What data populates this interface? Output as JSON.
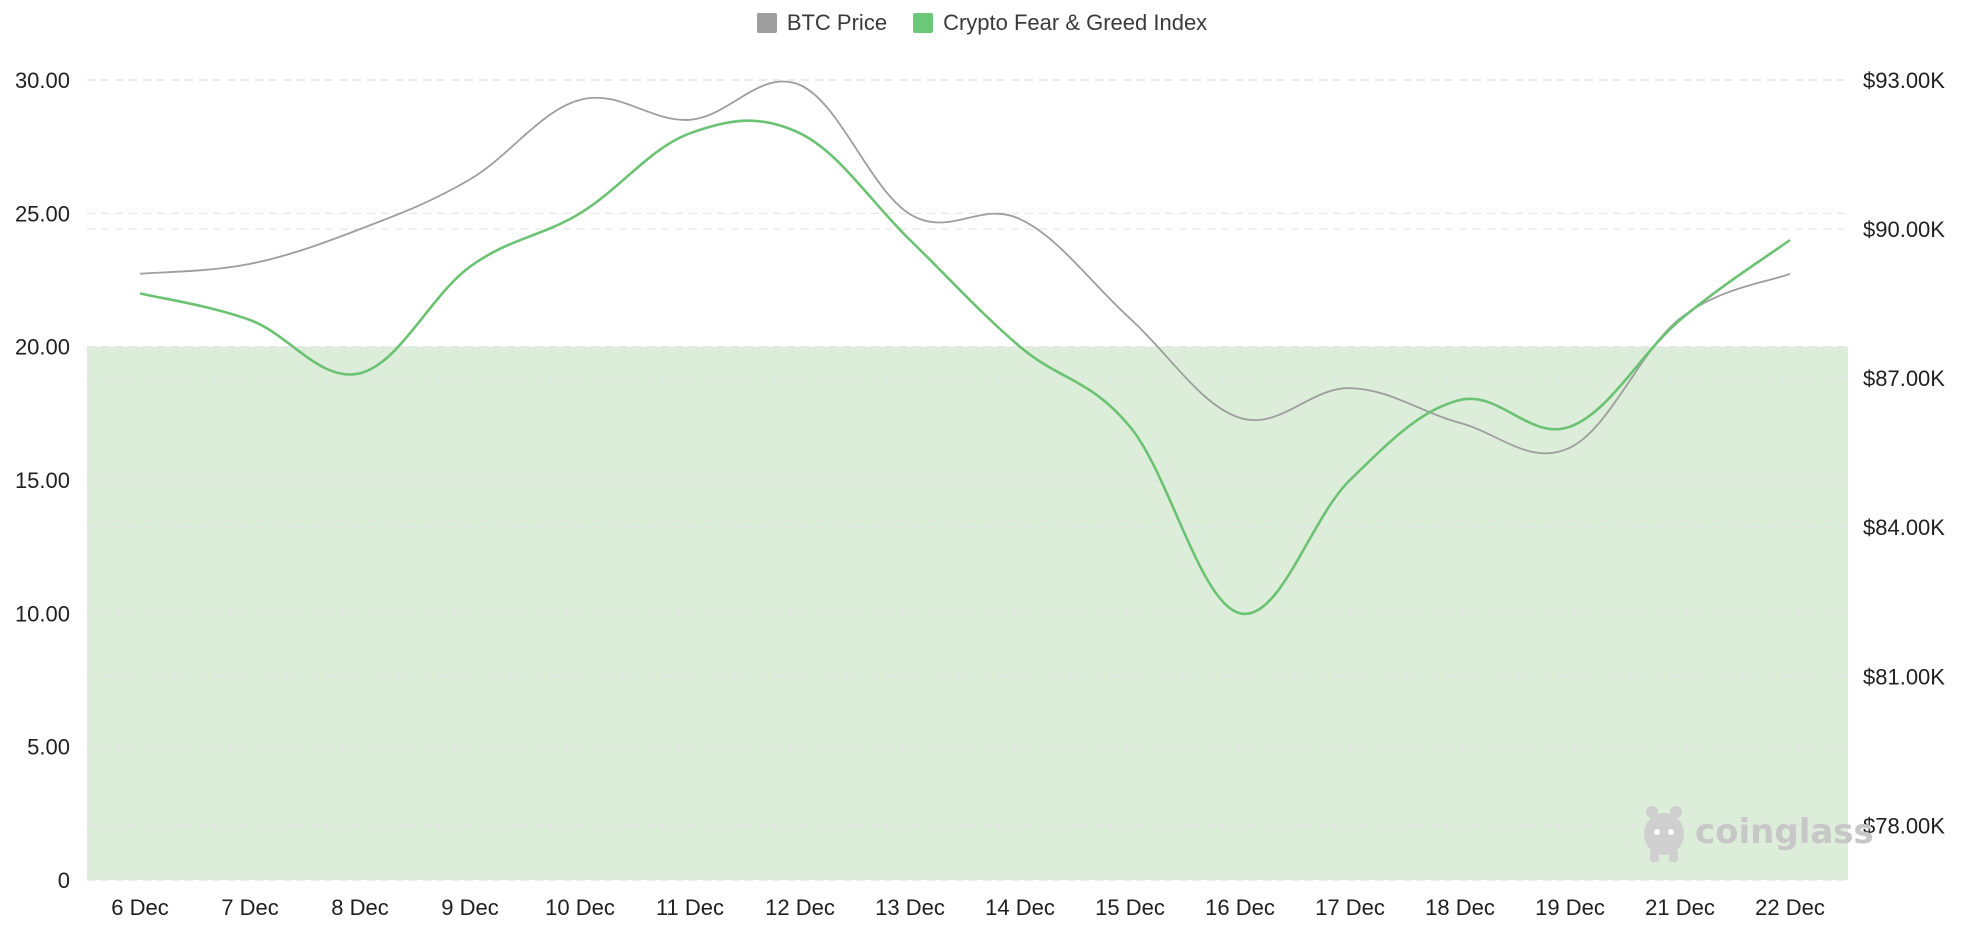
{
  "legend": {
    "btc_label": "BTC Price",
    "fg_label": "Crypto Fear & Greed Index"
  },
  "watermark": {
    "brand": "coinglass"
  },
  "colors": {
    "btc_line": "#9e9e9e",
    "fg_line": "#6cc273",
    "zone_fill": "#dcedda",
    "grid": "#e4e4e4",
    "legend_btc_swatch": "#9e9e9e",
    "legend_fg_swatch": "#6cc878"
  },
  "chart_data": {
    "type": "line",
    "categories": [
      "6 Dec",
      "7 Dec",
      "8 Dec",
      "9 Dec",
      "10 Dec",
      "11 Dec",
      "12 Dec",
      "13 Dec",
      "14 Dec",
      "15 Dec",
      "16 Dec",
      "17 Dec",
      "18 Dec",
      "19 Dec",
      "21 Dec",
      "22 Dec"
    ],
    "series": [
      {
        "name": "BTC Price",
        "axis": "right",
        "values": [
          89100,
          89300,
          90000,
          91000,
          92600,
          92200,
          92900,
          90300,
          90200,
          88200,
          86200,
          86800,
          86100,
          85600,
          88200,
          89100
        ]
      },
      {
        "name": "Crypto Fear & Greed Index",
        "axis": "left",
        "values": [
          22,
          21,
          19,
          23,
          25,
          28,
          28,
          24,
          20,
          17,
          10,
          15,
          18,
          17,
          21,
          24
        ]
      }
    ],
    "left_axis": {
      "ticks": [
        0,
        5,
        10,
        15,
        20,
        25,
        30
      ],
      "tick_labels": [
        "0",
        "5.00",
        "10.00",
        "15.00",
        "20.00",
        "25.00",
        "30.00"
      ],
      "min": 0,
      "max": 30
    },
    "right_axis": {
      "ticks": [
        78000,
        81000,
        84000,
        87000,
        90000,
        93000
      ],
      "tick_labels": [
        "$78.00K",
        "$81.00K",
        "$84.00K",
        "$87.00K",
        "$90.00K",
        "$93.00K"
      ],
      "min": 76900,
      "max": 93000
    },
    "shaded_zone": {
      "from": 0,
      "to": 20
    },
    "grid": true,
    "legend_position": "top-center"
  }
}
